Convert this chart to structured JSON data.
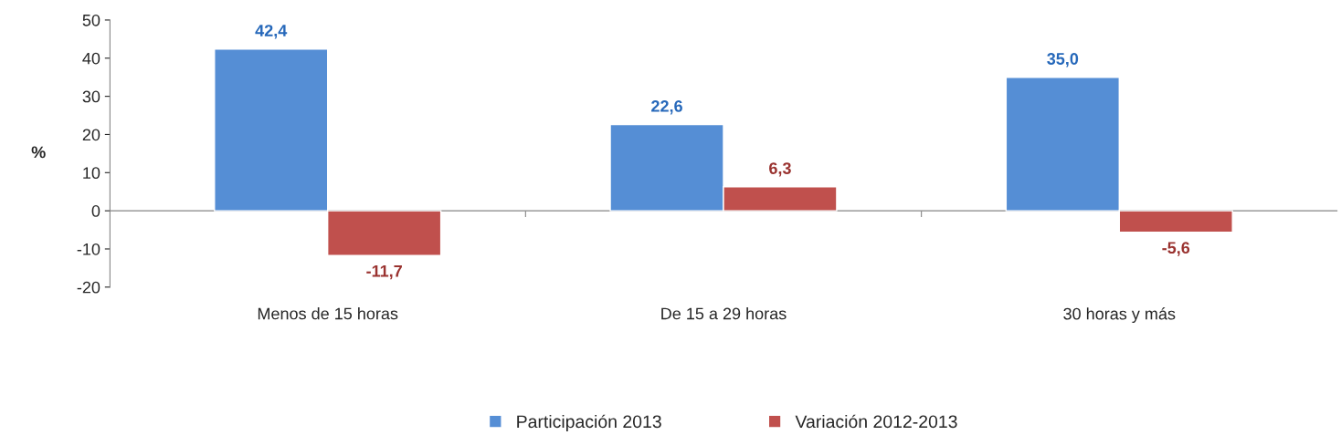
{
  "chart_data": {
    "type": "bar",
    "ylabel": "%",
    "categories": [
      "Menos de 15 horas",
      "De 15 a 29 horas",
      "30 horas y más"
    ],
    "series": [
      {
        "name": "Participación 2013",
        "color": "#558ed5",
        "values": [
          42.4,
          22.6,
          35.0
        ],
        "value_labels": [
          "42,4",
          "22,6",
          "35,0"
        ]
      },
      {
        "name": "Variación 2012-2013",
        "color": "#c0504d",
        "values": [
          -11.7,
          6.3,
          -5.6
        ],
        "value_labels": [
          "-11,7",
          "6,3",
          "-5,6"
        ]
      }
    ],
    "ylim": [
      -20,
      50
    ],
    "yticks": [
      -20,
      -10,
      0,
      10,
      20,
      30,
      40,
      50
    ],
    "legend": "bottom"
  }
}
